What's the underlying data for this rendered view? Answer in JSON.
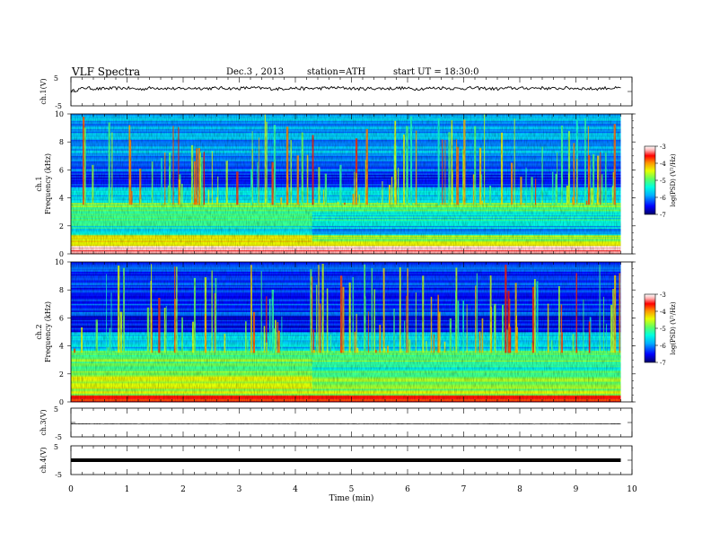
{
  "header": {
    "title": "VLF Spectra",
    "date": "Dec.3 , 2013",
    "station": "station=ATH",
    "start": "start UT = 18:30:0"
  },
  "colors": {
    "spectrogram_colormap": [
      "#00006a",
      "#0000ff",
      "#00b0ff",
      "#00ffe0",
      "#60ff60",
      "#e8ff00",
      "#ff9000",
      "#ff0000",
      "#ffb0b0",
      "#ffffff"
    ],
    "trace": "#000000",
    "axis": "#000000"
  },
  "chart_data": [
    {
      "type": "line",
      "name": "ch1-waveform",
      "ylabel": "ch.1(V)",
      "yticks": [
        "5",
        "-5"
      ],
      "ylim": [
        -5,
        5
      ],
      "xlim": [
        0,
        10
      ],
      "x_span_min": [
        0,
        9.8
      ],
      "y": [
        0,
        1.3,
        0.9,
        1.1,
        1.2,
        0.8,
        1.3,
        1.1,
        0.9,
        1.2,
        1.1,
        1.2,
        1.0,
        1.3,
        1.1,
        0.9,
        1.2,
        1.0,
        1.1,
        1.3,
        1.2,
        0.9,
        1.1,
        1.0,
        1.2,
        0.9,
        1.1,
        1.3,
        1.0,
        1.2,
        1.1,
        0.9,
        1.2,
        1.1,
        1.3,
        1.0,
        1.2,
        1.1,
        0.9,
        1.2,
        1.1
      ]
    },
    {
      "type": "heatmap",
      "name": "ch1-spectrogram",
      "ylabel": "Frequency (kHz)",
      "channel_label": "ch.1",
      "ylim": [
        0,
        10
      ],
      "yticks": [
        "0",
        "2",
        "4",
        "6",
        "8",
        "10"
      ],
      "xlim": [
        0,
        10
      ],
      "colorbar": {
        "label": "log(PSD) (V²/Hz)",
        "ticks": [
          "-3",
          "-4",
          "-5",
          "-6",
          "-7"
        ],
        "range": [
          -7,
          -3
        ]
      },
      "bands": [
        {
          "f": [
            0,
            0.5
          ],
          "level": -3.3
        },
        {
          "f": [
            0.5,
            1.3
          ],
          "level": -4.5
        },
        {
          "f": [
            1.3,
            2.0
          ],
          "level": -5.4
        },
        {
          "f": [
            2.0,
            3.6
          ],
          "level": -4.9
        },
        {
          "f": [
            3.6,
            4.8
          ],
          "level": -5.7
        },
        {
          "f": [
            4.8,
            5.8
          ],
          "level": -6.4
        },
        {
          "f": [
            5.8,
            7.0
          ],
          "level": -6.1
        },
        {
          "f": [
            7.0,
            10.0
          ],
          "level": -5.9
        }
      ]
    },
    {
      "type": "heatmap",
      "name": "ch2-spectrogram",
      "ylabel": "Frequency (kHz)",
      "channel_label": "ch.2",
      "ylim": [
        0,
        10
      ],
      "yticks": [
        "0",
        "2",
        "4",
        "6",
        "8",
        "10"
      ],
      "xlim": [
        0,
        10
      ],
      "colorbar": {
        "label": "log(PSD) (V²/Hz)",
        "ticks": [
          "-3",
          "-4",
          "-5",
          "-6",
          "-7"
        ],
        "range": [
          -7,
          -3
        ]
      },
      "bands": [
        {
          "f": [
            0,
            0.4
          ],
          "level": -3.6
        },
        {
          "f": [
            0.4,
            1.8
          ],
          "level": -4.6
        },
        {
          "f": [
            1.8,
            3.6
          ],
          "level": -4.9
        },
        {
          "f": [
            3.6,
            5.0
          ],
          "level": -5.7
        },
        {
          "f": [
            5.0,
            6.2
          ],
          "level": -6.5
        },
        {
          "f": [
            6.2,
            10.0
          ],
          "level": -6.3
        }
      ]
    },
    {
      "type": "line",
      "name": "ch3-waveform",
      "ylabel": "ch.3(V)",
      "yticks": [
        "5",
        "-5"
      ],
      "ylim": [
        -5,
        5
      ],
      "xlim": [
        0,
        10
      ],
      "x_span_min": [
        0,
        9.8
      ],
      "y": [
        -0.5,
        -0.5,
        -0.5,
        -0.5,
        -0.5,
        -0.5,
        -0.5,
        -0.5,
        -0.5,
        -0.5
      ]
    },
    {
      "type": "line",
      "name": "ch4-waveform",
      "ylabel": "ch.4(V)",
      "yticks": [
        "5",
        "-5"
      ],
      "ylim": [
        -5,
        5
      ],
      "xlim": [
        0,
        10
      ],
      "x_span_min": [
        0,
        9.8
      ],
      "y": [
        0,
        0,
        0,
        0,
        0,
        0,
        0,
        0,
        0,
        0
      ]
    }
  ],
  "xaxis": {
    "label": "Time (min)",
    "ticks": [
      "0",
      "1",
      "2",
      "3",
      "4",
      "5",
      "6",
      "7",
      "8",
      "9",
      "10"
    ],
    "range": [
      0,
      10
    ]
  }
}
